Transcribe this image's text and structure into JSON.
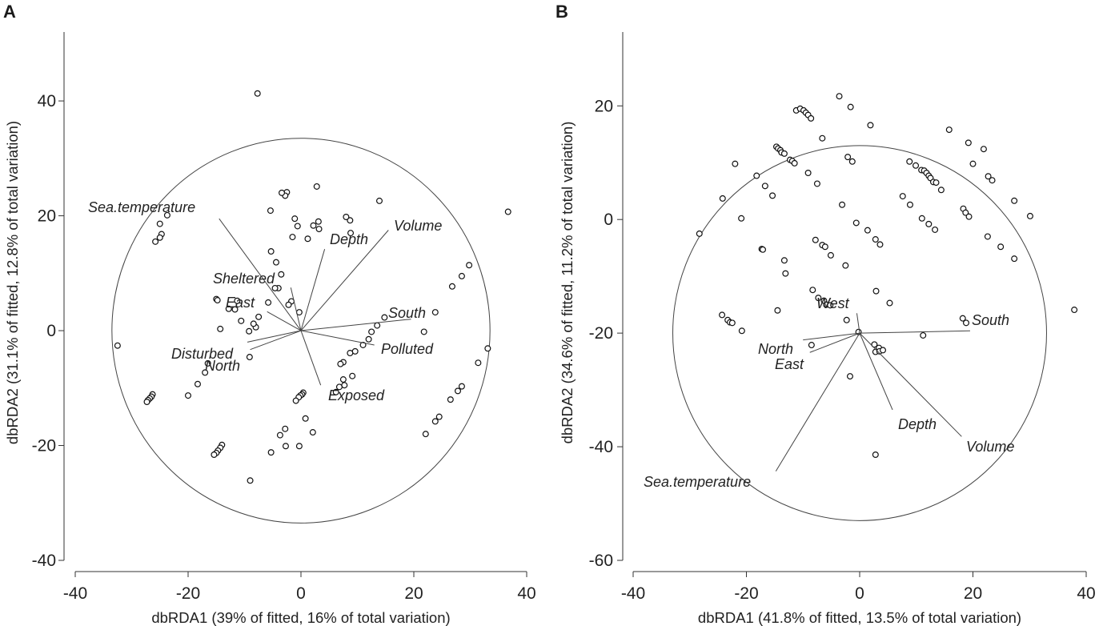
{
  "figure": {
    "panels": [
      {
        "letter": "A",
        "chart_data": {
          "type": "scatter",
          "title": "",
          "xlabel": "dbRDA1 (39% of fitted, 16% of total variation)",
          "ylabel": "dbRDA2 (31.1% of fitted, 12.8% of total variation)",
          "xlim": [
            -40,
            40
          ],
          "ylim": [
            -40,
            52
          ],
          "xticks": [
            -40,
            -20,
            0,
            20,
            40
          ],
          "yticks": [
            -40,
            -20,
            0,
            20,
            40
          ],
          "grid": false,
          "circle": {
            "center": [
              0,
              0
            ],
            "radius": 33.5
          },
          "vectors": [
            {
              "name": "Sea.temperature",
              "x": -14.5,
              "y": 19.5
            },
            {
              "name": "Volume",
              "x": 15.5,
              "y": 17.5
            },
            {
              "name": "Depth",
              "x": 4.2,
              "y": 14.2
            },
            {
              "name": "Sheltered",
              "x": -1.8,
              "y": 7.5
            },
            {
              "name": "East",
              "x": -6,
              "y": 3.3
            },
            {
              "name": "South",
              "x": 19.5,
              "y": 2
            },
            {
              "name": "Polluted",
              "x": 13,
              "y": -2.5
            },
            {
              "name": "Disturbed",
              "x": -9.5,
              "y": -2
            },
            {
              "name": "North",
              "x": -9,
              "y": -3.3
            },
            {
              "name": "Exposed",
              "x": 3.5,
              "y": -9.5
            }
          ],
          "points": [
            [
              -7.7,
              41.3
            ],
            [
              -32.5,
              -2.6
            ],
            [
              36.7,
              20.7
            ],
            [
              33.1,
              -3.1
            ],
            [
              31.4,
              -5.6
            ],
            [
              29.8,
              11.4
            ],
            [
              28.5,
              9.5
            ],
            [
              28.5,
              -9.7
            ],
            [
              27.8,
              -10.5
            ],
            [
              26.8,
              7.7
            ],
            [
              26.5,
              -12
            ],
            [
              24.5,
              -15
            ],
            [
              23.8,
              -15.8
            ],
            [
              23.8,
              3.2
            ],
            [
              22.1,
              -18
            ],
            [
              21.8,
              -0.2
            ],
            [
              13.9,
              22.6
            ],
            [
              14.8,
              2.3
            ],
            [
              13.5,
              0.9
            ],
            [
              12.5,
              -0.2
            ],
            [
              12,
              -1.5
            ],
            [
              11,
              -2.5
            ],
            [
              9.6,
              -3.6
            ],
            [
              8.7,
              -3.9
            ],
            [
              8.7,
              19.2
            ],
            [
              8,
              19.8
            ],
            [
              8.8,
              17
            ],
            [
              7.5,
              -5.5
            ],
            [
              7,
              -5.8
            ],
            [
              7.5,
              -8.5
            ],
            [
              7.7,
              -9.5
            ],
            [
              6.8,
              -9.8
            ],
            [
              6.2,
              -10.7
            ],
            [
              9.1,
              -7.9
            ],
            [
              3.1,
              19
            ],
            [
              3.2,
              17.7
            ],
            [
              2.8,
              25.1
            ],
            [
              2.2,
              18.3
            ],
            [
              1.2,
              16
            ],
            [
              -1.5,
              16.3
            ],
            [
              -1.1,
              19.5
            ],
            [
              -0.6,
              18.2
            ],
            [
              -2.5,
              24.1
            ],
            [
              -2.8,
              23.5
            ],
            [
              -3.4,
              24
            ],
            [
              -4.4,
              11.9
            ],
            [
              -5.3,
              13.8
            ],
            [
              -5.4,
              20.9
            ],
            [
              -3.5,
              9.8
            ],
            [
              -4,
              7.4
            ],
            [
              -4.6,
              7.4
            ],
            [
              -1.7,
              5.1
            ],
            [
              -2.2,
              4.5
            ],
            [
              -0.3,
              3.2
            ],
            [
              -5.8,
              4.9
            ],
            [
              -7.5,
              2.4
            ],
            [
              -8,
              0.6
            ],
            [
              -8.4,
              1.2
            ],
            [
              -9.2,
              -0.1
            ],
            [
              -9.1,
              -4.6
            ],
            [
              -10.6,
              1.7
            ],
            [
              -11.7,
              3.7
            ],
            [
              -11.3,
              5.2
            ],
            [
              -12.8,
              3.8
            ],
            [
              -15,
              5.5
            ],
            [
              -14.8,
              5.3
            ],
            [
              -14.3,
              0.3
            ],
            [
              -16.5,
              -5.7
            ],
            [
              -17,
              -7.3
            ],
            [
              -18.3,
              -9.3
            ],
            [
              -20,
              -11.3
            ],
            [
              -23.7,
              20.1
            ],
            [
              -24.7,
              16.8
            ],
            [
              -25,
              16.2
            ],
            [
              -25.8,
              15.5
            ],
            [
              -25,
              18.6
            ],
            [
              -26.3,
              -11.1
            ],
            [
              -26.5,
              -11.5
            ],
            [
              -26.8,
              -11.8
            ],
            [
              -27.1,
              -12.1
            ],
            [
              -27.3,
              -12.4
            ],
            [
              -14,
              -19.9
            ],
            [
              -14.3,
              -20.4
            ],
            [
              -14.7,
              -20.9
            ],
            [
              -15,
              -21.3
            ],
            [
              -15.4,
              -21.6
            ],
            [
              -9,
              -26.1
            ],
            [
              -5.3,
              -21.2
            ],
            [
              -3.7,
              -18.2
            ],
            [
              -2.8,
              -17.1
            ],
            [
              -2.7,
              -20.1
            ],
            [
              -0.3,
              -20.1
            ],
            [
              0.8,
              -15.3
            ],
            [
              2.1,
              -17.7
            ],
            [
              0.4,
              -10.8
            ],
            [
              0.2,
              -11.1
            ],
            [
              -0.1,
              -11.3
            ],
            [
              -0.4,
              -11.6
            ],
            [
              -0.9,
              -12.2
            ]
          ]
        }
      },
      {
        "letter": "B",
        "chart_data": {
          "type": "scatter",
          "title": "",
          "xlabel": "dbRDA1 (41.8% of fitted, 13.5% of total variation)",
          "ylabel": "dbRDA2 (34.6% of fitted, 11.2% of total variation)",
          "xlim": [
            -40,
            40
          ],
          "ylim": [
            -60,
            33
          ],
          "xticks": [
            -40,
            -20,
            0,
            20,
            40
          ],
          "yticks": [
            -60,
            -40,
            -20,
            0,
            20
          ],
          "grid": false,
          "circle": {
            "center": [
              0,
              -20
            ],
            "radius": 33
          },
          "vectors": [
            {
              "name": "West",
              "x": -0.5,
              "y": -16.5
            },
            {
              "name": "South",
              "x": 19.5,
              "y": -19.6
            },
            {
              "name": "North",
              "x": -10,
              "y": -21.2
            },
            {
              "name": "East",
              "x": -8.8,
              "y": -23.4
            },
            {
              "name": "Depth",
              "x": 5.8,
              "y": -33.5
            },
            {
              "name": "Volume",
              "x": 18,
              "y": -38.2
            },
            {
              "name": "Sea.temperature",
              "x": -14.8,
              "y": -44.3
            }
          ],
          "points": [
            [
              -3.6,
              21.7
            ],
            [
              -1.6,
              19.8
            ],
            [
              -11.2,
              19.2
            ],
            [
              -10.5,
              19.5
            ],
            [
              -9.9,
              19.2
            ],
            [
              -9.5,
              18.8
            ],
            [
              -9.1,
              18.4
            ],
            [
              -8.6,
              17.8
            ],
            [
              1.9,
              16.6
            ],
            [
              15.8,
              15.8
            ],
            [
              19.2,
              13.5
            ],
            [
              21.9,
              12.4
            ],
            [
              -14.7,
              12.8
            ],
            [
              -14.4,
              12.5
            ],
            [
              -14,
              12.2
            ],
            [
              -13.8,
              11.8
            ],
            [
              -13.3,
              11.6
            ],
            [
              -12.3,
              10.5
            ],
            [
              -11.9,
              10.3
            ],
            [
              -11.5,
              9.9
            ],
            [
              -6.6,
              14.3
            ],
            [
              -2.1,
              11
            ],
            [
              -1.3,
              10.2
            ],
            [
              -24.2,
              3.7
            ],
            [
              -22,
              9.8
            ],
            [
              -18.2,
              7.7
            ],
            [
              -16.7,
              5.9
            ],
            [
              -15.4,
              4.2
            ],
            [
              -9.1,
              8.2
            ],
            [
              -7.5,
              6.3
            ],
            [
              -3.1,
              2.6
            ],
            [
              -0.6,
              -0.6
            ],
            [
              1.4,
              -1.9
            ],
            [
              2.8,
              -3.5
            ],
            [
              3.6,
              -4.4
            ],
            [
              -28.3,
              -2.5
            ],
            [
              -20.9,
              0.2
            ],
            [
              -17.3,
              -5.2
            ],
            [
              -17.1,
              -5.3
            ],
            [
              -13.3,
              -7.2
            ],
            [
              -13.1,
              -9.5
            ],
            [
              -7.8,
              -3.6
            ],
            [
              -6.6,
              -4.5
            ],
            [
              -6.1,
              -4.8
            ],
            [
              -5.1,
              -6.3
            ],
            [
              -2.5,
              -8.1
            ],
            [
              -8.3,
              -12.4
            ],
            [
              -7.3,
              -13.8
            ],
            [
              -6.3,
              -14.3
            ],
            [
              -5.9,
              -15
            ],
            [
              -5.2,
              -15.1
            ],
            [
              -14.5,
              -16
            ],
            [
              -24.3,
              -16.8
            ],
            [
              -23.3,
              -17.7
            ],
            [
              -22.9,
              -18.1
            ],
            [
              -22.5,
              -18.2
            ],
            [
              -20.8,
              -19.6
            ],
            [
              -8.5,
              -22.1
            ],
            [
              -2.3,
              -17.7
            ],
            [
              5.3,
              -14.7
            ],
            [
              2.9,
              -12.6
            ],
            [
              -0.2,
              -19.8
            ],
            [
              2.6,
              -22
            ],
            [
              3.4,
              -22.6
            ],
            [
              2.8,
              -23.3
            ],
            [
              3.5,
              -23.2
            ],
            [
              4.1,
              -23
            ],
            [
              -1.7,
              -27.6
            ],
            [
              2.8,
              -41.4
            ],
            [
              8.8,
              10.2
            ],
            [
              9.9,
              9.5
            ],
            [
              10.9,
              8.7
            ],
            [
              11.4,
              8.6
            ],
            [
              11.8,
              8.2
            ],
            [
              12.2,
              7.7
            ],
            [
              12.5,
              7.3
            ],
            [
              13,
              6.6
            ],
            [
              13.5,
              6.5
            ],
            [
              14.4,
              5.2
            ],
            [
              7.6,
              4.1
            ],
            [
              8.9,
              2.6
            ],
            [
              11,
              0.2
            ],
            [
              12.2,
              -0.8
            ],
            [
              13.3,
              -1.8
            ],
            [
              18.3,
              1.9
            ],
            [
              18.7,
              1.2
            ],
            [
              19.3,
              0.5
            ],
            [
              20,
              9.8
            ],
            [
              22.7,
              7.6
            ],
            [
              23.4,
              6.9
            ],
            [
              27.3,
              3.3
            ],
            [
              30.1,
              0.6
            ],
            [
              22.6,
              -3
            ],
            [
              24.9,
              -4.8
            ],
            [
              27.3,
              -6.9
            ],
            [
              18.2,
              -17.4
            ],
            [
              18.8,
              -18.2
            ],
            [
              11.2,
              -20.4
            ],
            [
              37.9,
              -15.9
            ]
          ]
        }
      }
    ]
  }
}
